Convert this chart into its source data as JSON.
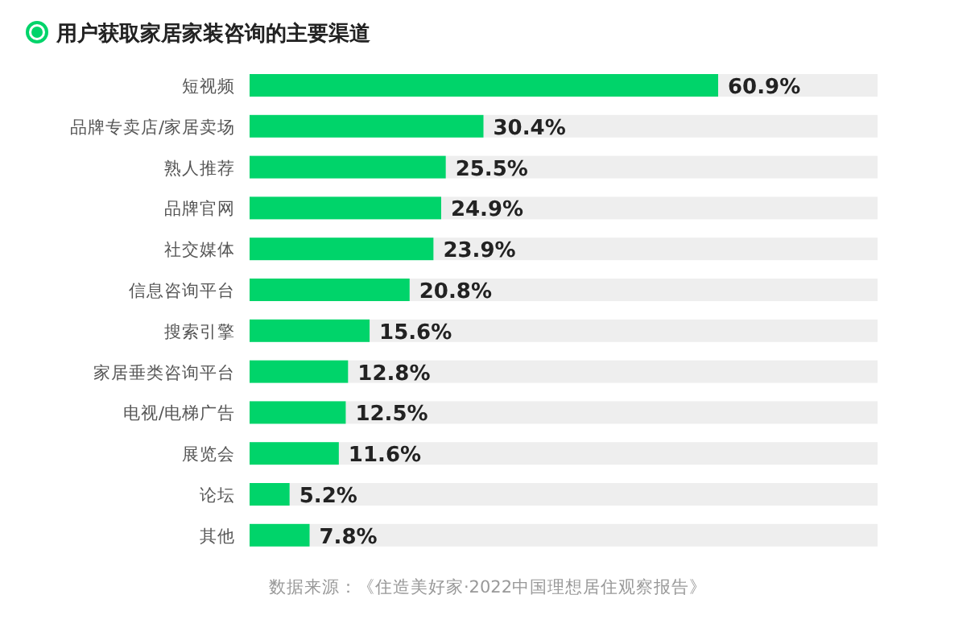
{
  "chart_data": {
    "type": "bar",
    "orientation": "horizontal",
    "title": "用户获取家居家装咨询的主要渠道",
    "categories": [
      "短视频",
      "品牌专卖店/家居卖场",
      "熟人推荐",
      "品牌官网",
      "社交媒体",
      "信息咨询平台",
      "搜索引擎",
      "家居垂类咨询平台",
      "电视/电梯广告",
      "展览会",
      "论坛",
      "其他"
    ],
    "values": [
      60.9,
      30.4,
      25.5,
      24.9,
      23.9,
      20.8,
      15.6,
      12.8,
      12.5,
      11.6,
      5.2,
      7.8
    ],
    "value_labels": [
      "60.9%",
      "30.4%",
      "25.5%",
      "24.9%",
      "23.9%",
      "20.8%",
      "15.6%",
      "12.8%",
      "12.5%",
      "11.6%",
      "5.2%",
      "7.8%"
    ],
    "color": "#00d46a",
    "annotations": [
      "数据来源：《住造美好家·2022中国理想居住观察报告》"
    ]
  }
}
